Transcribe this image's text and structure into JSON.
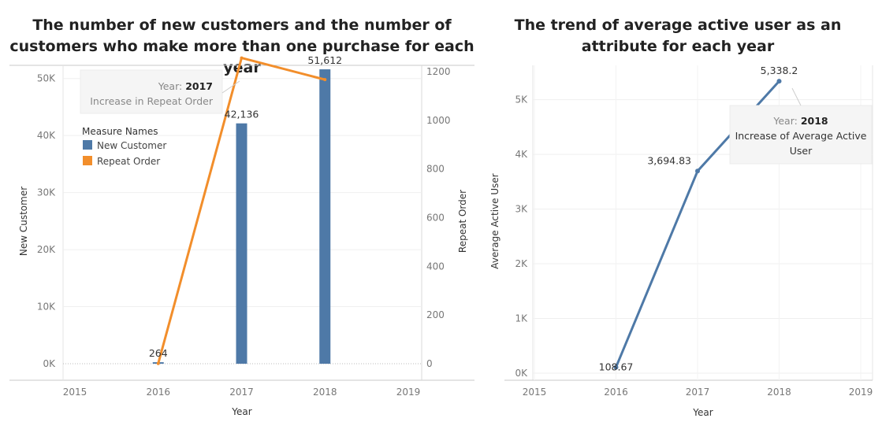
{
  "chart_data": [
    {
      "type": "bar",
      "title": "The number of new customers and the number of customers who make more than one purchase for each year",
      "xlabel": "Year",
      "x_ticks": [
        "2015",
        "2016",
        "2017",
        "2018",
        "2019"
      ],
      "ylabel": "New Customer",
      "ylim": [
        0,
        55000
      ],
      "y_ticks": [
        "0K",
        "10K",
        "20K",
        "30K",
        "40K",
        "50K"
      ],
      "y2label": "Repeat Order",
      "y2lim": [
        0,
        1300
      ],
      "y2_ticks": [
        "0",
        "200",
        "400",
        "600",
        "800",
        "1000",
        "1200"
      ],
      "legend": {
        "title": "Measure Names",
        "position": "top-left"
      },
      "series": [
        {
          "name": "New Customer",
          "type": "bar",
          "axis": "left",
          "color": "#4e79a7",
          "x": [
            2016,
            2017,
            2018
          ],
          "values": [
            264,
            42136,
            51612
          ],
          "labels": [
            "264",
            "42,136",
            "51,612"
          ]
        },
        {
          "name": "Repeat Order",
          "type": "line",
          "axis": "right",
          "color": "#f28e2b",
          "x": [
            2016,
            2017,
            2018
          ],
          "values": [
            1,
            1256,
            1167
          ]
        }
      ],
      "tooltip": {
        "year_label": "Year:",
        "year": "2017",
        "text": "Increase in Repeat Order"
      }
    },
    {
      "type": "line",
      "title": "The trend of average active user as an attribute for each year",
      "xlabel": "Year",
      "x_ticks": [
        "2015",
        "2016",
        "2017",
        "2018",
        "2019"
      ],
      "ylabel": "Average Active User",
      "ylim": [
        0,
        5700
      ],
      "y_ticks": [
        "0K",
        "1K",
        "2K",
        "3K",
        "4K",
        "5K"
      ],
      "series": [
        {
          "name": "Average Active User",
          "color": "#4e79a7",
          "x": [
            2016,
            2017,
            2018
          ],
          "values": [
            108.67,
            3694.83,
            5338.2
          ],
          "labels": [
            "108.67",
            "3,694.83",
            "5,338.2"
          ]
        }
      ],
      "tooltip": {
        "year_label": "Year:",
        "year": "2018",
        "text_line1": "Increase of Average Active",
        "text_line2": "User"
      }
    }
  ]
}
